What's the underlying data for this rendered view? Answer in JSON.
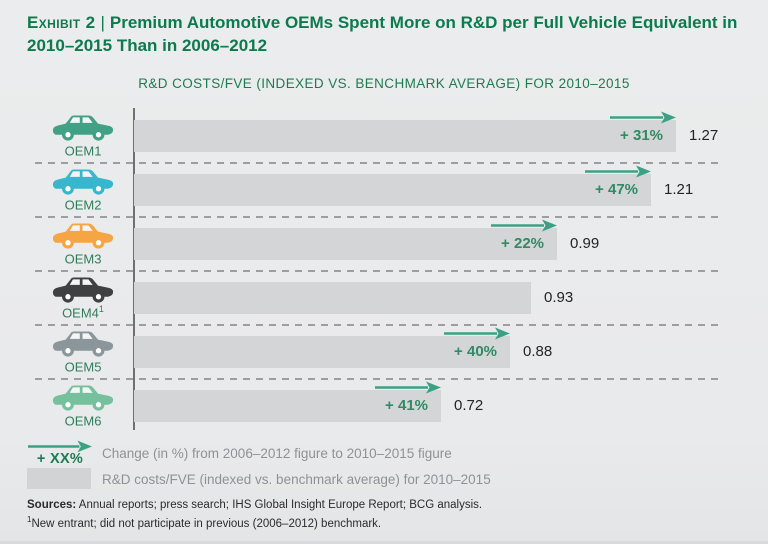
{
  "exhibit": {
    "label": "Exhibit 2",
    "separator": "|",
    "title_line1": "Premium Automotive OEMs Spent More on R&D per Full Vehicle Equivalent in",
    "title_line2": "2010–2015 Than in 2006–2012"
  },
  "chart_data": {
    "type": "bar",
    "orientation": "horizontal",
    "title": "R&D COSTS/FVE (INDEXED VS. BENCHMARK AVERAGE) FOR 2010–2015",
    "categories": [
      "OEM1",
      "OEM2",
      "OEM3",
      "OEM4¹",
      "OEM5",
      "OEM6"
    ],
    "values": [
      1.27,
      1.21,
      0.99,
      0.93,
      0.88,
      0.72
    ],
    "change_labels": [
      "+ 31%",
      "+ 47%",
      "+ 22%",
      null,
      "+ 40%",
      "+ 41%"
    ],
    "xlabel": "",
    "ylabel": "",
    "xlim": [
      0,
      1.45
    ],
    "grid": "dashed-row-separators",
    "legend_position": "bottom-left",
    "bar_color": "#d4d5d7",
    "rows": [
      {
        "label": "OEM1",
        "sup": "",
        "value": "1.27",
        "value_num": 1.27,
        "change": "+ 31%",
        "car_color": "#41a185"
      },
      {
        "label": "OEM2",
        "sup": "",
        "value": "1.21",
        "value_num": 1.21,
        "change": "+ 47%",
        "car_color": "#38b6ce"
      },
      {
        "label": "OEM3",
        "sup": "",
        "value": "0.99",
        "value_num": 0.99,
        "change": "+ 22%",
        "car_color": "#f6a544"
      },
      {
        "label": "OEM4",
        "sup": "1",
        "value": "0.93",
        "value_num": 0.93,
        "change": null,
        "car_color": "#3f4041"
      },
      {
        "label": "OEM5",
        "sup": "",
        "value": "0.88",
        "value_num": 0.88,
        "change": "+ 40%",
        "car_color": "#8b969b"
      },
      {
        "label": "OEM6",
        "sup": "",
        "value": "0.72",
        "value_num": 0.72,
        "change": "+ 41%",
        "car_color": "#76c09e"
      }
    ]
  },
  "legend": {
    "arrow_label": "+ XX%",
    "arrow_text": "Change (in %) from 2006–2012 figure to 2010–2015 figure",
    "bar_text": "R&D costs/FVE (indexed vs. benchmark average) for 2010–2015"
  },
  "footer": {
    "sources_label": "Sources:",
    "sources_text": " Annual reports; press search; IHS Global Insight Europe Report; BCG analysis.",
    "footnote_sup": "1",
    "footnote_text": "New entrant; did not participate in previous (2006–2012) benchmark."
  },
  "colors": {
    "background": "#e9eaeb",
    "title_green": "#0d7a4e",
    "chart_title_green": "#1d7b53",
    "label_green": "#2e7d5b",
    "pct_green": "#2e8b63",
    "arrow_green": "#3ca184",
    "bar_gray": "#d4d5d7",
    "legend_text_gray": "#8e9297",
    "axis_gray": "#6e7072",
    "dash_gray": "#9c9ea0",
    "footer_text": "#2b2b2b"
  }
}
